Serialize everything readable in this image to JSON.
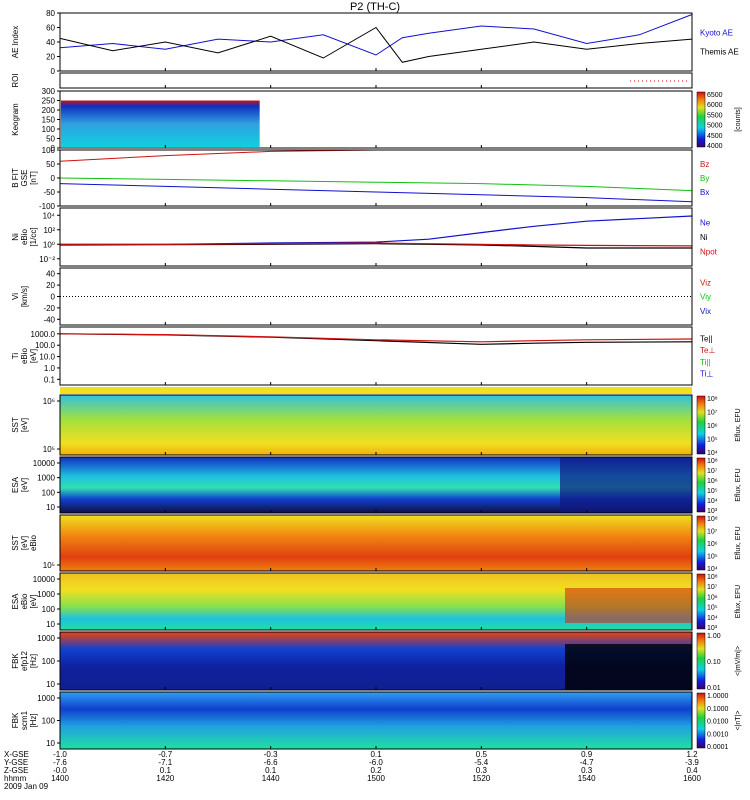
{
  "title": "P2 (TH-C)",
  "date_label": "2009 Jan 09",
  "footer": {
    "labels": [
      "X-GSE",
      "Y-GSE",
      "Z-GSE",
      "hhmm"
    ],
    "columns": [
      {
        "x": "-1.0",
        "y": "-7.6",
        "z": "-0.0",
        "t": "1400"
      },
      {
        "x": "-0.7",
        "y": "-7.1",
        "z": "0.1",
        "t": "1420"
      },
      {
        "x": "-0.3",
        "y": "-6.6",
        "z": "0.1",
        "t": "1440"
      },
      {
        "x": "0.1",
        "y": "-6.0",
        "z": "0.2",
        "t": "1500"
      },
      {
        "x": "0.5",
        "y": "-5.4",
        "z": "0.3",
        "t": "1520"
      },
      {
        "x": "0.9",
        "y": "-4.7",
        "z": "0.3",
        "t": "1540"
      },
      {
        "x": "1.2",
        "y": "-3.9",
        "z": "0.4",
        "t": "1600"
      }
    ]
  },
  "colors": {
    "red": "#d01010",
    "green": "#10c010",
    "blue": "#1010d0",
    "black": "#000000"
  },
  "chart_data": [
    {
      "type": "line",
      "ylabel": "AE Index",
      "ylim": [
        0,
        80
      ],
      "yticks": [
        "0",
        "20",
        "40",
        "60",
        "80"
      ],
      "x": [
        1400,
        1410,
        1420,
        1430,
        1440,
        1450,
        1500,
        1505,
        1510,
        1520,
        1530,
        1540,
        1550,
        1600
      ],
      "series": [
        {
          "name": "Kyoto AE",
          "values": [
            32,
            38,
            30,
            44,
            40,
            50,
            22,
            46,
            52,
            62,
            58,
            38,
            50,
            78
          ]
        },
        {
          "name": "Themis AE",
          "values": [
            45,
            28,
            40,
            25,
            48,
            18,
            60,
            12,
            20,
            30,
            40,
            30,
            38,
            44
          ]
        }
      ]
    },
    {
      "type": "line",
      "ylabel": "ROI",
      "ylim": [
        0,
        1
      ],
      "yticks": [],
      "series": []
    },
    {
      "type": "heatmap",
      "ylabel": "Keogram",
      "ylim": [
        0,
        300
      ],
      "yticks": [
        "0",
        "50",
        "100",
        "150",
        "200",
        "250",
        "300"
      ],
      "colorbar": {
        "ticks": [
          "4000",
          "4500",
          "5000",
          "5500",
          "6000",
          "6500"
        ],
        "label": "[counts]"
      }
    },
    {
      "type": "line",
      "ylabel": "B FIT",
      "ylabel2": "GSE",
      "ylabel3": "[nT]",
      "ylim": [
        -100,
        100
      ],
      "yticks": [
        "-100",
        "-50",
        "0",
        "50",
        "100"
      ],
      "x": [
        1400,
        1420,
        1440,
        1500,
        1520,
        1540,
        1600
      ],
      "series": [
        {
          "name": "Bz",
          "values": [
            60,
            80,
            95,
            100,
            100,
            100,
            100
          ]
        },
        {
          "name": "By",
          "values": [
            0,
            -5,
            -10,
            -15,
            -20,
            -30,
            -45
          ]
        },
        {
          "name": "Bx",
          "values": [
            -20,
            -30,
            -40,
            -50,
            -60,
            -70,
            -85
          ]
        }
      ]
    },
    {
      "type": "line",
      "ylabel": "Ni",
      "ylabel2": "eBio",
      "ylabel3": "[1/cc]",
      "scale": "log",
      "yticks": [
        "10⁻²",
        "10⁰",
        "10²",
        "10⁴"
      ],
      "x": [
        1400,
        1420,
        1440,
        1500,
        1510,
        1520,
        1530,
        1540,
        1600
      ],
      "series": [
        {
          "name": "Ne",
          "values": [
            1,
            1,
            1.5,
            2,
            5,
            40,
            300,
            1500,
            8000
          ]
        },
        {
          "name": "Ni",
          "values": [
            0.8,
            0.9,
            1,
            1.2,
            1,
            0.8,
            0.5,
            0.3,
            0.3
          ]
        },
        {
          "name": "Npot",
          "values": [
            1,
            1,
            1.2,
            1.5,
            1.2,
            1,
            0.8,
            0.7,
            0.6
          ]
        }
      ]
    },
    {
      "type": "line",
      "ylabel": "Vi",
      "ylabel2": "[km/s]",
      "ylim": [
        -50,
        50
      ],
      "yticks": [
        "-40",
        "-20",
        "0",
        "20",
        "40"
      ],
      "series": [
        {
          "name": "Viz"
        },
        {
          "name": "Viy"
        },
        {
          "name": "Vix"
        }
      ]
    },
    {
      "type": "line",
      "ylabel": "Ti",
      "ylabel2": "eBio",
      "ylabel3": "[eV]",
      "scale": "log",
      "yticks": [
        "0.1",
        "1.0",
        "10.0",
        "100.0",
        "1000.0"
      ],
      "x": [
        1400,
        1420,
        1440,
        1500,
        1520,
        1530,
        1540,
        1600
      ],
      "series": [
        {
          "name": "Te||",
          "values": [
            1000,
            800,
            500,
            250,
            120,
            150,
            180,
            200
          ]
        },
        {
          "name": "Te⊥",
          "values": [
            1000,
            850,
            550,
            300,
            200,
            250,
            300,
            350
          ]
        },
        {
          "name": "Ti||"
        },
        {
          "name": "Ti⊥"
        }
      ]
    },
    {
      "type": "heatmap",
      "ylabel": "SST",
      "ylabel2": "[eV]",
      "ylabel3": "",
      "yticks": [
        "10⁵",
        "10⁶"
      ],
      "colorbar": {
        "ticks": [
          "10⁴",
          "10⁵",
          "10⁶",
          "10⁷",
          "10⁸"
        ],
        "label": "Eflux, EFU"
      }
    },
    {
      "type": "heatmap",
      "ylabel": "ESA",
      "ylabel2": "[eV]",
      "yticks": [
        "10",
        "100",
        "1000",
        "10000"
      ],
      "colorbar": {
        "ticks": [
          "10³",
          "10⁴",
          "10⁵",
          "10⁶",
          "10⁷",
          "10⁸"
        ],
        "label": "Eflux, EFU"
      }
    },
    {
      "type": "heatmap",
      "ylabel": "SST",
      "ylabel2": "[eV]",
      "ylabel3": "eBio",
      "yticks": [
        "10⁵"
      ],
      "colorbar": {
        "ticks": [
          "10⁴",
          "10⁵",
          "10⁶",
          "10⁷",
          "10⁸"
        ],
        "label": "Eflux, EFU"
      }
    },
    {
      "type": "heatmap",
      "ylabel": "ESA",
      "ylabel2": "eBio",
      "ylabel3": "[eV]",
      "yticks": [
        "10",
        "100",
        "1000",
        "10000"
      ],
      "colorbar": {
        "ticks": [
          "10³",
          "10⁴",
          "10⁵",
          "10⁶",
          "10⁷",
          "10⁸"
        ],
        "label": "Eflux, EFU"
      }
    },
    {
      "type": "heatmap",
      "ylabel": "FBK",
      "ylabel2": "efp12",
      "ylabel3": "[Hz]",
      "yticks": [
        "10",
        "100",
        "1000"
      ],
      "colorbar": {
        "ticks": [
          "0.01",
          "0.10",
          "1.00"
        ],
        "label": "<|mV/m|>"
      }
    },
    {
      "type": "heatmap",
      "ylabel": "FBK",
      "ylabel2": "scm1",
      "ylabel3": "[Hz]",
      "yticks": [
        "10",
        "100",
        "1000"
      ],
      "colorbar": {
        "ticks": [
          "0.0001",
          "0.0010",
          "0.0100",
          "0.1000",
          "1.0000"
        ],
        "label": "<|nT|>"
      }
    }
  ]
}
